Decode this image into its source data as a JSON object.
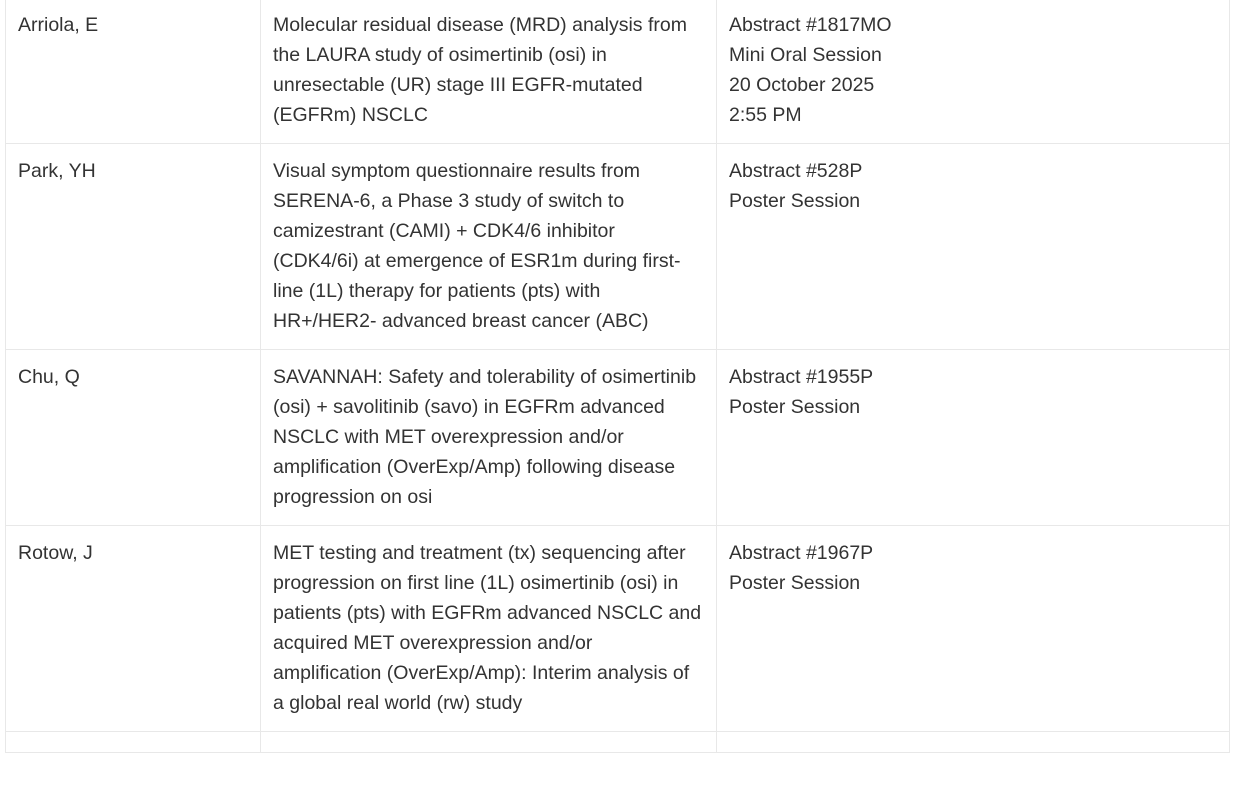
{
  "rows": [
    {
      "author": "Arriola, E",
      "title": "Molecular residual disease (MRD) analysis from the LAURA study of osimertinib (osi) in unresectable (UR) stage III EGFR-mutated (EGFRm) NSCLC",
      "details": [
        "Abstract #1817MO",
        "Mini Oral Session",
        "20 October 2025",
        "2:55 PM"
      ]
    },
    {
      "author": "Park, YH",
      "title": "Visual symptom questionnaire results from SERENA-6, a Phase 3 study of switch to camizestrant (CAMI) + CDK4/6 inhibitor (CDK4/6i) at emergence of ESR1m during first-line (1L) therapy for patients (pts) with HR+/HER2- advanced breast cancer (ABC)",
      "details": [
        "Abstract #528P",
        "Poster Session"
      ]
    },
    {
      "author": "Chu, Q",
      "title": "SAVANNAH: Safety and tolerability of osimertinib (osi) + savolitinib (savo) in EGFRm advanced NSCLC with MET overexpression and/or amplification (OverExp/Amp) following disease progression on osi",
      "details": [
        "Abstract #1955P",
        "Poster Session"
      ]
    },
    {
      "author": "Rotow, J",
      "title": "MET testing and treatment (tx) sequencing after progression on first line (1L) osimertinib (osi) in patients (pts) with EGFRm advanced NSCLC and acquired MET overexpression and/or amplification (OverExp/Amp): Interim analysis of a global real world (rw) study",
      "details": [
        "Abstract #1967P",
        "Poster Session"
      ]
    }
  ]
}
